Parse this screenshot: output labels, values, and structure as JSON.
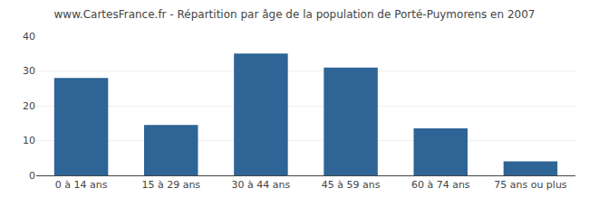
{
  "chart_data": {
    "type": "bar",
    "title": "www.CartesFrance.fr - Répartition par âge de la population de Porté-Puymorens en 2007",
    "categories": [
      "0 à 14 ans",
      "15 à 29 ans",
      "30 à 44 ans",
      "45 à 59 ans",
      "60 à 74 ans",
      "75 ans ou plus"
    ],
    "values": [
      28,
      14.5,
      35,
      31,
      13.5,
      4
    ],
    "color": "#2e6496",
    "ylim": [
      0,
      40
    ],
    "yticks": [
      0,
      10,
      20,
      30,
      40
    ],
    "grid": true
  }
}
